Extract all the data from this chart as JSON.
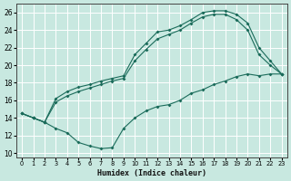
{
  "xlabel": "Humidex (Indice chaleur)",
  "bg_color": "#c8e8e0",
  "grid_color": "#ffffff",
  "line_color": "#1a6b5a",
  "xlim": [
    -0.5,
    23.5
  ],
  "ylim": [
    9.5,
    27.0
  ],
  "xticks": [
    0,
    1,
    2,
    3,
    4,
    5,
    6,
    7,
    8,
    9,
    10,
    11,
    12,
    13,
    14,
    15,
    16,
    17,
    18,
    19,
    20,
    21,
    22,
    23
  ],
  "yticks": [
    10,
    12,
    14,
    16,
    18,
    20,
    22,
    24,
    26
  ],
  "line_bottom_x": [
    0,
    1,
    2,
    3,
    4,
    5,
    6,
    7,
    8,
    9,
    10,
    11,
    12,
    13,
    14,
    15,
    16,
    17,
    18,
    19,
    20,
    21,
    22,
    23
  ],
  "line_bottom_y": [
    14.5,
    14.0,
    13.5,
    12.8,
    12.3,
    11.2,
    10.8,
    10.5,
    10.6,
    12.8,
    14.0,
    14.8,
    15.3,
    15.5,
    16.0,
    16.8,
    17.2,
    17.8,
    18.2,
    18.7,
    19.0,
    18.8,
    19.0,
    19.0
  ],
  "line_upper_x": [
    0,
    1,
    2,
    3,
    4,
    5,
    6,
    7,
    8,
    9,
    10,
    11,
    12,
    13,
    14,
    15,
    16,
    17,
    18,
    19,
    20,
    21,
    22,
    23
  ],
  "line_upper_y": [
    14.5,
    14.0,
    13.5,
    16.2,
    17.0,
    17.5,
    17.8,
    18.2,
    18.5,
    18.8,
    21.2,
    22.5,
    23.8,
    24.0,
    24.5,
    25.2,
    26.0,
    26.2,
    26.2,
    25.8,
    24.8,
    22.0,
    20.5,
    19.0
  ],
  "line_mid_x": [
    0,
    1,
    2,
    3,
    4,
    5,
    6,
    7,
    8,
    9,
    10,
    11,
    12,
    13,
    14,
    15,
    16,
    17,
    18,
    19,
    20,
    21,
    22,
    23
  ],
  "line_mid_y": [
    14.5,
    14.0,
    13.5,
    15.8,
    16.5,
    17.0,
    17.4,
    17.8,
    18.2,
    18.5,
    20.5,
    21.8,
    23.0,
    23.5,
    24.0,
    24.8,
    25.5,
    25.8,
    25.8,
    25.2,
    24.0,
    21.2,
    20.0,
    19.0
  ]
}
